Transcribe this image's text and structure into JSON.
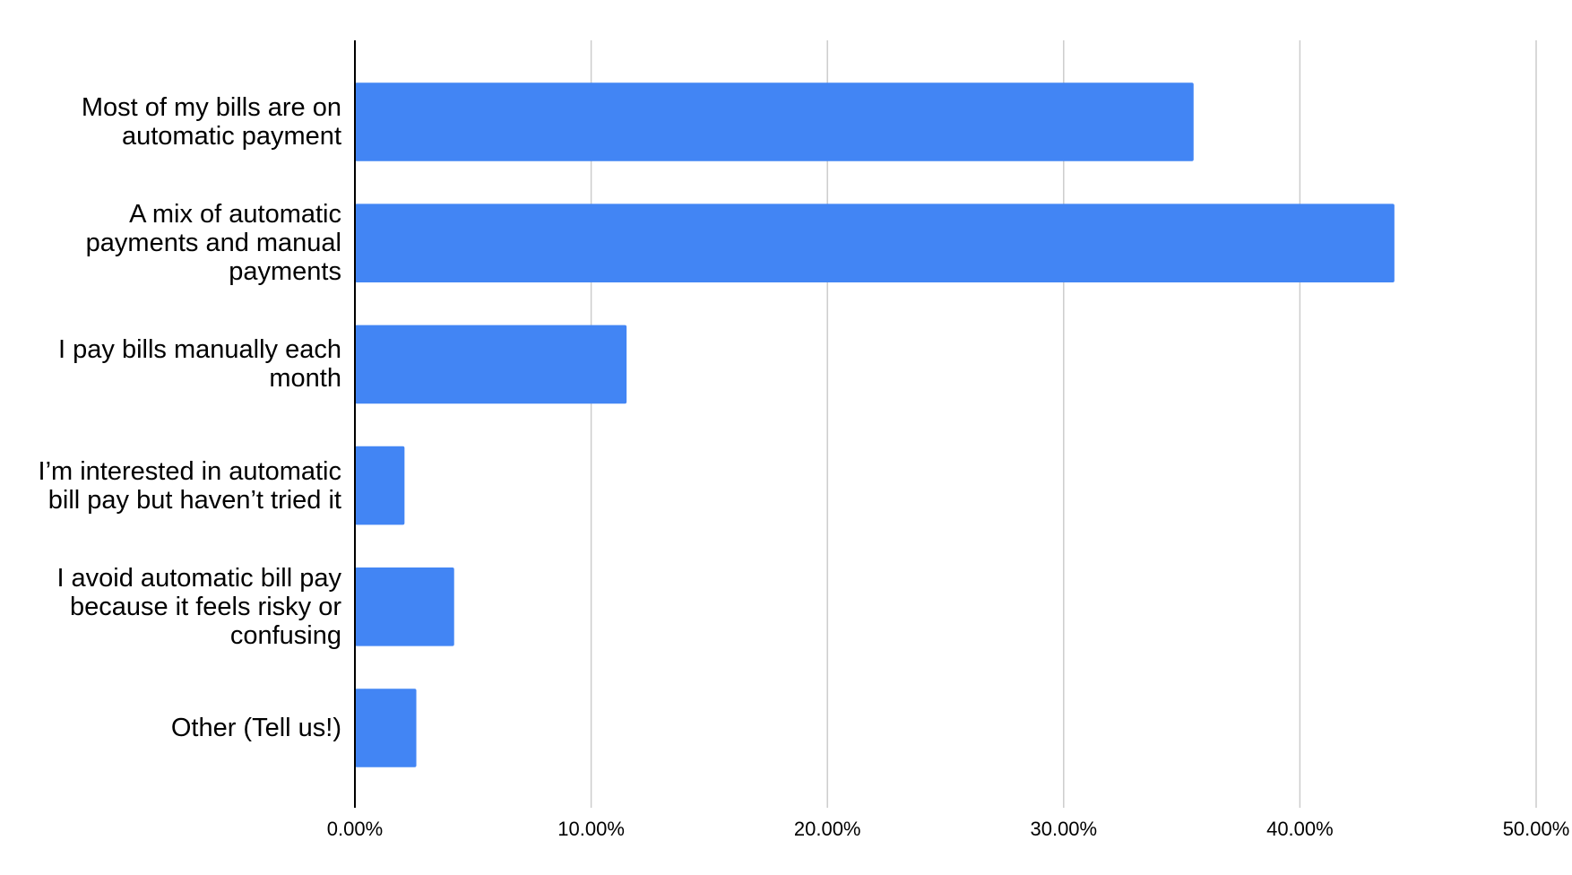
{
  "chart_data": {
    "type": "bar",
    "orientation": "horizontal",
    "categories": [
      "Most of my bills are on automatic payment",
      "A mix of automatic payments and manual payments",
      "I pay bills manually each month",
      "I’m interested in automatic bill pay but haven’t tried it",
      "I avoid automatic bill pay because it feels risky or confusing",
      "Other (Tell us!)"
    ],
    "values": [
      35.5,
      44,
      11.5,
      2.1,
      4.2,
      2.6
    ],
    "color": "#4285f4",
    "xlim": [
      0,
      50
    ],
    "xticks": [
      {
        "value": 0,
        "label": "0.00%"
      },
      {
        "value": 10,
        "label": "10.00%"
      },
      {
        "value": 20,
        "label": "20.00%"
      },
      {
        "value": 30,
        "label": "30.00%"
      },
      {
        "value": 40,
        "label": "40.00%"
      },
      {
        "value": 50,
        "label": "50.00%"
      }
    ],
    "grid": true
  }
}
